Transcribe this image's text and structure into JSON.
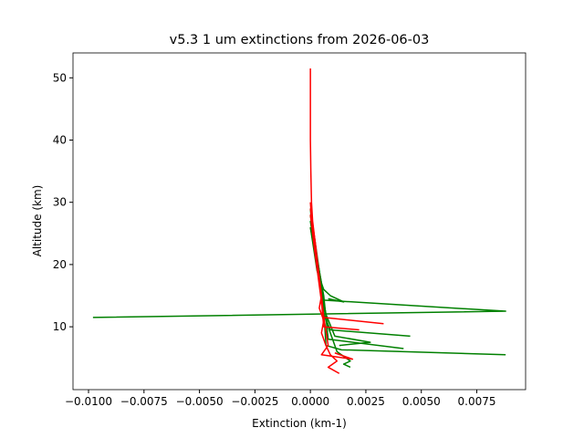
{
  "chart_data": {
    "type": "line",
    "title": "v5.3 1 um extinctions from 2026-06-03",
    "x_label": "Extinction (km-1)",
    "y_label": "Altitude (km)",
    "xlim": [
      -0.0107,
      0.0097
    ],
    "ylim": [
      -0.1,
      54
    ],
    "xticks": [
      {
        "value": -0.01,
        "label": "−0.0100"
      },
      {
        "value": -0.0075,
        "label": "−0.0075"
      },
      {
        "value": -0.005,
        "label": "−0.0050"
      },
      {
        "value": -0.0025,
        "label": "−0.0025"
      },
      {
        "value": 0,
        "label": "0.0000"
      },
      {
        "value": 0.0025,
        "label": "0.0025"
      },
      {
        "value": 0.005,
        "label": "0.0050"
      },
      {
        "value": 0.0075,
        "label": "0.0075"
      }
    ],
    "yticks": [
      10,
      20,
      30,
      40,
      50
    ],
    "series": [
      {
        "color": "#008000",
        "x": [
          0,
          0.0001,
          0.0003,
          0.0005,
          0.0088,
          -0.0098
        ],
        "y": [
          29,
          25,
          20,
          14.3,
          12.5,
          11.5
        ]
      },
      {
        "color": "#008000",
        "x": [
          0,
          0.0002,
          0.0004,
          0.0006,
          0.0007,
          0.0014,
          0.0088
        ],
        "y": [
          28,
          24,
          19,
          13,
          7,
          6.3,
          5.5
        ]
      },
      {
        "color": "#008000",
        "x": [
          0,
          0.0002,
          0.0005,
          0.0006,
          0.0009,
          0.0045
        ],
        "y": [
          28,
          23,
          17,
          12,
          9.5,
          8.5
        ]
      },
      {
        "color": "#008000",
        "x": [
          0,
          0.0003,
          0.0006,
          0.0008,
          0.0042
        ],
        "y": [
          27,
          21,
          15,
          8,
          6.5
        ]
      },
      {
        "color": "#008000",
        "x": [
          0,
          0.0003,
          0.0007,
          0.0011,
          0.0027,
          0.0013
        ],
        "y": [
          27,
          20,
          12,
          8.5,
          7.5,
          7
        ]
      },
      {
        "color": "#008000",
        "x": [
          0,
          0.0003,
          0.0006,
          0.0009,
          0.0015,
          0.0008
        ],
        "y": [
          26,
          19,
          16,
          15,
          14,
          14.5
        ]
      },
      {
        "color": "#008000",
        "x": [
          0,
          0.0004,
          0.0008,
          0.0012,
          0.0018,
          0.0015,
          0.0018
        ],
        "y": [
          26,
          18,
          10,
          6,
          4.5,
          4,
          3.5
        ]
      },
      {
        "color": "#ff0000",
        "x": [
          0,
          0,
          0,
          2e-05,
          5e-05,
          0.0001,
          0.0002,
          0.0003,
          0.0004,
          0.0005,
          0.0004,
          0.0006,
          0.0005,
          0.0007,
          0.0009,
          0.0012,
          0.0008,
          0.0013
        ],
        "y": [
          51.5,
          45,
          40,
          35,
          30,
          27,
          24,
          21,
          18,
          15,
          13,
          11,
          9,
          7,
          5.5,
          4.5,
          3.5,
          2.5
        ]
      },
      {
        "color": "#ff0000",
        "x": [
          0,
          0.0001,
          0.0003,
          0.0005,
          0.0006,
          0.0033
        ],
        "y": [
          30,
          25,
          20,
          15,
          11.5,
          10.5
        ]
      },
      {
        "color": "#ff0000",
        "x": [
          0,
          0.0002,
          0.0004,
          0.0006,
          0.0022
        ],
        "y": [
          29,
          24,
          18,
          10,
          9.5
        ]
      },
      {
        "color": "#ff0000",
        "x": [
          0,
          0.0002,
          0.0005,
          0.0008,
          0.0005,
          0.0019,
          0.0011
        ],
        "y": [
          28,
          22,
          14,
          7,
          5.5,
          4.8,
          5.8
        ]
      }
    ]
  }
}
